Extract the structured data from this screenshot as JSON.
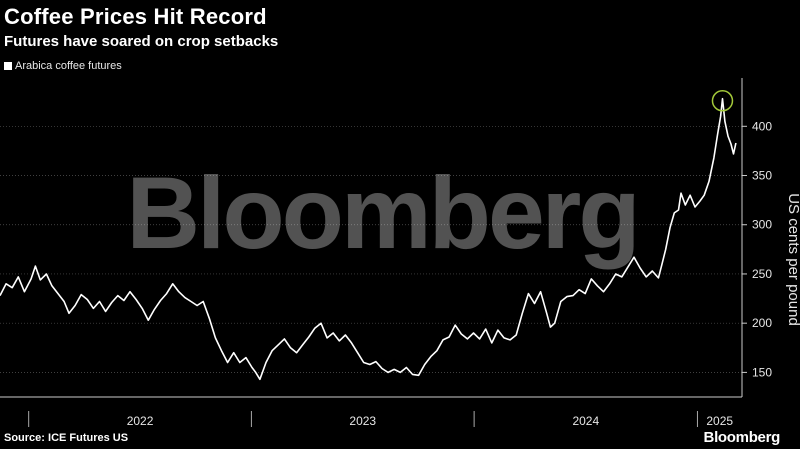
{
  "header": {
    "title": "Coffee Prices Hit Record",
    "subtitle": "Futures have soared on crop setbacks"
  },
  "footer": {
    "source": "Source: ICE Futures US",
    "brand": "Bloomberg"
  },
  "watermark": "Bloomberg",
  "colors": {
    "background": "#000000",
    "line": "#ffffff",
    "highlight": "#a3c93a",
    "grid": "#555555"
  },
  "chart_data": {
    "type": "line",
    "title": "Coffee Prices Hit Record",
    "subtitle": "Futures have soared on crop setbacks",
    "ylabel": "US cents per pound",
    "xlabel": "",
    "ylim": [
      125,
      445
    ],
    "y_ticks": [
      150,
      200,
      250,
      300,
      350,
      400
    ],
    "xlim": [
      "2021-11-15",
      "2025-03-15"
    ],
    "x_tick_labels": [
      "2022",
      "2023",
      "2024",
      "2025"
    ],
    "x_year_boundaries": [
      "2022-01-01",
      "2023-01-01",
      "2024-01-01",
      "2025-01-01"
    ],
    "grid": true,
    "legend_position": "top-left",
    "highlight_point": {
      "x": "2025-02-11",
      "y": 428
    },
    "series": [
      {
        "name": "Arabica coffee futures",
        "points": [
          [
            "2021-11-15",
            228
          ],
          [
            "2021-11-25",
            240
          ],
          [
            "2021-12-05",
            236
          ],
          [
            "2021-12-15",
            247
          ],
          [
            "2021-12-25",
            232
          ],
          [
            "2022-01-05",
            245
          ],
          [
            "2022-01-12",
            258
          ],
          [
            "2022-01-20",
            244
          ],
          [
            "2022-01-30",
            250
          ],
          [
            "2022-02-08",
            238
          ],
          [
            "2022-02-18",
            230
          ],
          [
            "2022-02-28",
            222
          ],
          [
            "2022-03-08",
            210
          ],
          [
            "2022-03-18",
            218
          ],
          [
            "2022-03-28",
            229
          ],
          [
            "2022-04-07",
            224
          ],
          [
            "2022-04-17",
            215
          ],
          [
            "2022-04-27",
            222
          ],
          [
            "2022-05-07",
            212
          ],
          [
            "2022-05-17",
            221
          ],
          [
            "2022-05-27",
            228
          ],
          [
            "2022-06-06",
            223
          ],
          [
            "2022-06-16",
            232
          ],
          [
            "2022-06-26",
            224
          ],
          [
            "2022-07-06",
            215
          ],
          [
            "2022-07-16",
            203
          ],
          [
            "2022-07-26",
            214
          ],
          [
            "2022-08-05",
            223
          ],
          [
            "2022-08-15",
            230
          ],
          [
            "2022-08-25",
            240
          ],
          [
            "2022-09-04",
            232
          ],
          [
            "2022-09-14",
            226
          ],
          [
            "2022-09-24",
            222
          ],
          [
            "2022-10-04",
            218
          ],
          [
            "2022-10-14",
            222
          ],
          [
            "2022-10-24",
            205
          ],
          [
            "2022-11-03",
            185
          ],
          [
            "2022-11-13",
            172
          ],
          [
            "2022-11-23",
            160
          ],
          [
            "2022-12-03",
            170
          ],
          [
            "2022-12-13",
            160
          ],
          [
            "2022-12-23",
            165
          ],
          [
            "2023-01-02",
            155
          ],
          [
            "2023-01-08",
            150
          ],
          [
            "2023-01-15",
            143
          ],
          [
            "2023-01-25",
            160
          ],
          [
            "2023-02-04",
            172
          ],
          [
            "2023-02-14",
            178
          ],
          [
            "2023-02-24",
            184
          ],
          [
            "2023-03-06",
            175
          ],
          [
            "2023-03-16",
            170
          ],
          [
            "2023-03-26",
            178
          ],
          [
            "2023-04-05",
            186
          ],
          [
            "2023-04-15",
            195
          ],
          [
            "2023-04-25",
            200
          ],
          [
            "2023-05-05",
            185
          ],
          [
            "2023-05-15",
            190
          ],
          [
            "2023-05-25",
            182
          ],
          [
            "2023-06-04",
            188
          ],
          [
            "2023-06-14",
            180
          ],
          [
            "2023-06-24",
            170
          ],
          [
            "2023-07-04",
            160
          ],
          [
            "2023-07-14",
            158
          ],
          [
            "2023-07-24",
            161
          ],
          [
            "2023-08-03",
            154
          ],
          [
            "2023-08-13",
            150
          ],
          [
            "2023-08-23",
            153
          ],
          [
            "2023-09-02",
            150
          ],
          [
            "2023-09-12",
            155
          ],
          [
            "2023-09-22",
            148
          ],
          [
            "2023-10-02",
            147
          ],
          [
            "2023-10-12",
            158
          ],
          [
            "2023-10-22",
            166
          ],
          [
            "2023-11-01",
            172
          ],
          [
            "2023-11-11",
            183
          ],
          [
            "2023-11-21",
            186
          ],
          [
            "2023-12-01",
            198
          ],
          [
            "2023-12-11",
            189
          ],
          [
            "2023-12-21",
            184
          ],
          [
            "2023-12-31",
            190
          ],
          [
            "2024-01-10",
            184
          ],
          [
            "2024-01-20",
            194
          ],
          [
            "2024-01-30",
            180
          ],
          [
            "2024-02-09",
            193
          ],
          [
            "2024-02-19",
            185
          ],
          [
            "2024-02-29",
            183
          ],
          [
            "2024-03-10",
            188
          ],
          [
            "2024-03-20",
            210
          ],
          [
            "2024-03-30",
            230
          ],
          [
            "2024-04-09",
            220
          ],
          [
            "2024-04-19",
            232
          ],
          [
            "2024-04-29",
            210
          ],
          [
            "2024-05-05",
            196
          ],
          [
            "2024-05-12",
            200
          ],
          [
            "2024-05-22",
            222
          ],
          [
            "2024-06-01",
            227
          ],
          [
            "2024-06-11",
            228
          ],
          [
            "2024-06-21",
            234
          ],
          [
            "2024-07-01",
            230
          ],
          [
            "2024-07-11",
            245
          ],
          [
            "2024-07-21",
            238
          ],
          [
            "2024-07-31",
            232
          ],
          [
            "2024-08-10",
            240
          ],
          [
            "2024-08-20",
            250
          ],
          [
            "2024-08-30",
            247
          ],
          [
            "2024-09-09",
            257
          ],
          [
            "2024-09-19",
            267
          ],
          [
            "2024-09-29",
            256
          ],
          [
            "2024-10-09",
            247
          ],
          [
            "2024-10-19",
            253
          ],
          [
            "2024-10-29",
            246
          ],
          [
            "2024-11-03",
            258
          ],
          [
            "2024-11-10",
            275
          ],
          [
            "2024-11-17",
            297
          ],
          [
            "2024-11-24",
            312
          ],
          [
            "2024-12-01",
            315
          ],
          [
            "2024-12-05",
            332
          ],
          [
            "2024-12-12",
            320
          ],
          [
            "2024-12-20",
            330
          ],
          [
            "2024-12-28",
            318
          ],
          [
            "2025-01-05",
            324
          ],
          [
            "2025-01-12",
            330
          ],
          [
            "2025-01-20",
            344
          ],
          [
            "2025-01-28",
            368
          ],
          [
            "2025-02-03",
            392
          ],
          [
            "2025-02-08",
            410
          ],
          [
            "2025-02-11",
            428
          ],
          [
            "2025-02-15",
            405
          ],
          [
            "2025-02-20",
            390
          ],
          [
            "2025-02-25",
            382
          ],
          [
            "2025-03-01",
            372
          ],
          [
            "2025-03-05",
            383
          ]
        ]
      }
    ]
  }
}
